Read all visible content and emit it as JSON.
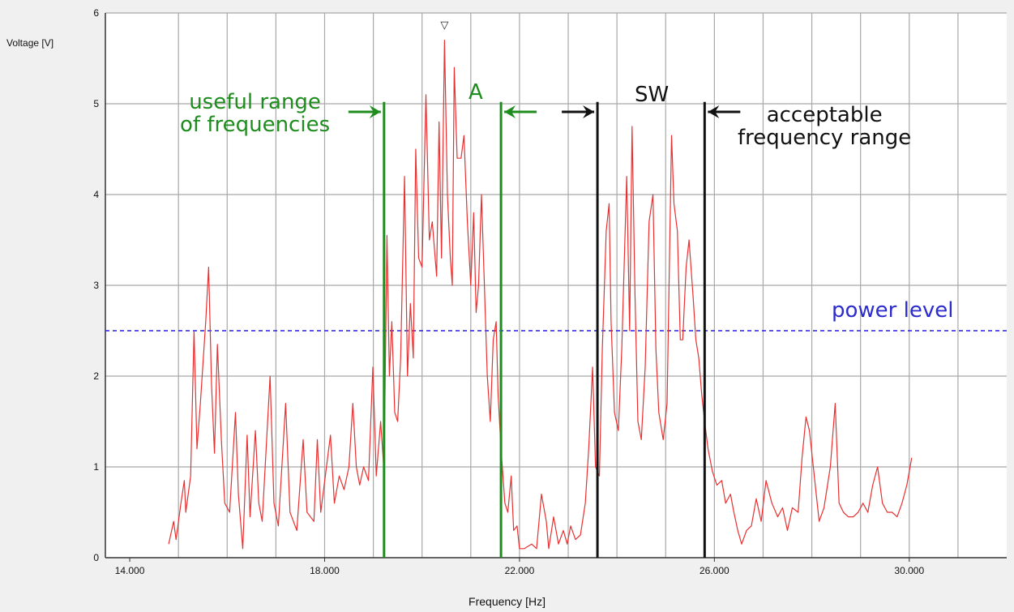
{
  "chart_data": {
    "type": "line",
    "title": "",
    "xlabel": "Frequency [Hz]",
    "ylabel": "Voltage [V]",
    "xlim": [
      13500,
      32000
    ],
    "ylim": [
      0,
      6
    ],
    "x_ticks": [
      14000,
      18000,
      22000,
      26000,
      30000
    ],
    "x_tick_labels": [
      "14.000",
      "18.000",
      "22.000",
      "26.000",
      "30.000"
    ],
    "x_minor_grid_step": 1000,
    "y_ticks": [
      0,
      1,
      2,
      3,
      4,
      5,
      6
    ],
    "y_tick_labels": [
      "0",
      "1",
      "2",
      "3",
      "4",
      "5",
      "6"
    ],
    "grid": true,
    "series": [
      {
        "color": "#e83030",
        "points": [
          [
            14800,
            0.15
          ],
          [
            14900,
            0.4
          ],
          [
            14950,
            0.2
          ],
          [
            15050,
            0.6
          ],
          [
            15120,
            0.85
          ],
          [
            15150,
            0.5
          ],
          [
            15250,
            0.9
          ],
          [
            15320,
            2.5
          ],
          [
            15380,
            1.2
          ],
          [
            15450,
            1.7
          ],
          [
            15560,
            2.6
          ],
          [
            15620,
            3.2
          ],
          [
            15680,
            1.9
          ],
          [
            15740,
            1.15
          ],
          [
            15800,
            2.35
          ],
          [
            15880,
            1.3
          ],
          [
            15950,
            0.6
          ],
          [
            16050,
            0.5
          ],
          [
            16170,
            1.6
          ],
          [
            16230,
            0.7
          ],
          [
            16320,
            0.1
          ],
          [
            16410,
            1.35
          ],
          [
            16470,
            0.45
          ],
          [
            16580,
            1.4
          ],
          [
            16650,
            0.6
          ],
          [
            16720,
            0.4
          ],
          [
            16880,
            2.0
          ],
          [
            16960,
            0.6
          ],
          [
            17050,
            0.35
          ],
          [
            17200,
            1.7
          ],
          [
            17290,
            0.5
          ],
          [
            17430,
            0.3
          ],
          [
            17560,
            1.3
          ],
          [
            17640,
            0.5
          ],
          [
            17780,
            0.4
          ],
          [
            17850,
            1.3
          ],
          [
            17920,
            0.5
          ],
          [
            18120,
            1.35
          ],
          [
            18200,
            0.6
          ],
          [
            18300,
            0.9
          ],
          [
            18400,
            0.75
          ],
          [
            18500,
            1.0
          ],
          [
            18580,
            1.7
          ],
          [
            18650,
            1.0
          ],
          [
            18720,
            0.8
          ],
          [
            18800,
            1.0
          ],
          [
            18900,
            0.85
          ],
          [
            18990,
            2.1
          ],
          [
            19060,
            0.9
          ],
          [
            19150,
            1.5
          ],
          [
            19220,
            0.95
          ],
          [
            19280,
            3.55
          ],
          [
            19330,
            2.0
          ],
          [
            19380,
            2.6
          ],
          [
            19440,
            1.6
          ],
          [
            19500,
            1.5
          ],
          [
            19560,
            2.2
          ],
          [
            19640,
            4.2
          ],
          [
            19700,
            2.0
          ],
          [
            19760,
            2.8
          ],
          [
            19820,
            2.2
          ],
          [
            19870,
            4.5
          ],
          [
            19930,
            3.3
          ],
          [
            20000,
            3.2
          ],
          [
            20080,
            5.1
          ],
          [
            20150,
            3.5
          ],
          [
            20210,
            3.7
          ],
          [
            20300,
            3.1
          ],
          [
            20350,
            4.8
          ],
          [
            20400,
            3.3
          ],
          [
            20460,
            5.7
          ],
          [
            20520,
            4.0
          ],
          [
            20580,
            3.3
          ],
          [
            20620,
            3.0
          ],
          [
            20660,
            5.4
          ],
          [
            20720,
            4.4
          ],
          [
            20800,
            4.4
          ],
          [
            20860,
            4.65
          ],
          [
            20930,
            3.7
          ],
          [
            21000,
            3.0
          ],
          [
            21060,
            3.8
          ],
          [
            21110,
            2.7
          ],
          [
            21160,
            3.0
          ],
          [
            21220,
            4.0
          ],
          [
            21280,
            3.0
          ],
          [
            21340,
            2.0
          ],
          [
            21400,
            1.5
          ],
          [
            21460,
            2.4
          ],
          [
            21520,
            2.6
          ],
          [
            21560,
            1.8
          ],
          [
            21620,
            1.2
          ],
          [
            21700,
            0.6
          ],
          [
            21760,
            0.5
          ],
          [
            21830,
            0.9
          ],
          [
            21880,
            0.3
          ],
          [
            21950,
            0.35
          ],
          [
            22000,
            0.1
          ],
          [
            22100,
            0.1
          ],
          [
            22250,
            0.15
          ],
          [
            22350,
            0.1
          ],
          [
            22450,
            0.7
          ],
          [
            22550,
            0.4
          ],
          [
            22600,
            0.1
          ],
          [
            22700,
            0.45
          ],
          [
            22800,
            0.15
          ],
          [
            22900,
            0.3
          ],
          [
            22980,
            0.15
          ],
          [
            23050,
            0.35
          ],
          [
            23150,
            0.2
          ],
          [
            23250,
            0.25
          ],
          [
            23350,
            0.6
          ],
          [
            23420,
            1.2
          ],
          [
            23500,
            2.1
          ],
          [
            23560,
            1.0
          ],
          [
            23640,
            0.9
          ],
          [
            23700,
            2.3
          ],
          [
            23780,
            3.6
          ],
          [
            23840,
            3.9
          ],
          [
            23880,
            2.6
          ],
          [
            23950,
            1.6
          ],
          [
            24030,
            1.4
          ],
          [
            24100,
            2.3
          ],
          [
            24200,
            4.2
          ],
          [
            24260,
            2.5
          ],
          [
            24310,
            4.75
          ],
          [
            24370,
            2.9
          ],
          [
            24430,
            1.5
          ],
          [
            24500,
            1.3
          ],
          [
            24580,
            2.1
          ],
          [
            24660,
            3.7
          ],
          [
            24740,
            4.0
          ],
          [
            24800,
            2.3
          ],
          [
            24860,
            1.6
          ],
          [
            24950,
            1.3
          ],
          [
            25030,
            1.7
          ],
          [
            25120,
            4.65
          ],
          [
            25170,
            3.9
          ],
          [
            25240,
            3.6
          ],
          [
            25300,
            2.4
          ],
          [
            25350,
            2.4
          ],
          [
            25420,
            3.2
          ],
          [
            25480,
            3.5
          ],
          [
            25560,
            2.9
          ],
          [
            25620,
            2.4
          ],
          [
            25680,
            2.2
          ],
          [
            25740,
            1.8
          ],
          [
            25800,
            1.5
          ],
          [
            25870,
            1.2
          ],
          [
            25960,
            0.95
          ],
          [
            26050,
            0.8
          ],
          [
            26150,
            0.85
          ],
          [
            26230,
            0.6
          ],
          [
            26330,
            0.7
          ],
          [
            26400,
            0.5
          ],
          [
            26480,
            0.3
          ],
          [
            26560,
            0.15
          ],
          [
            26660,
            0.3
          ],
          [
            26760,
            0.35
          ],
          [
            26860,
            0.65
          ],
          [
            26960,
            0.4
          ],
          [
            27060,
            0.85
          ],
          [
            27180,
            0.6
          ],
          [
            27300,
            0.45
          ],
          [
            27400,
            0.55
          ],
          [
            27500,
            0.3
          ],
          [
            27600,
            0.55
          ],
          [
            27720,
            0.5
          ],
          [
            27800,
            1.1
          ],
          [
            27880,
            1.55
          ],
          [
            27950,
            1.4
          ],
          [
            28050,
            0.9
          ],
          [
            28150,
            0.4
          ],
          [
            28250,
            0.55
          ],
          [
            28380,
            1.0
          ],
          [
            28480,
            1.7
          ],
          [
            28560,
            0.6
          ],
          [
            28650,
            0.5
          ],
          [
            28750,
            0.45
          ],
          [
            28850,
            0.45
          ],
          [
            28950,
            0.5
          ],
          [
            29050,
            0.6
          ],
          [
            29150,
            0.5
          ],
          [
            29250,
            0.8
          ],
          [
            29350,
            1.0
          ],
          [
            29450,
            0.6
          ],
          [
            29550,
            0.5
          ],
          [
            29650,
            0.5
          ],
          [
            29750,
            0.45
          ],
          [
            29850,
            0.6
          ],
          [
            29950,
            0.8
          ],
          [
            30050,
            1.1
          ]
        ]
      }
    ],
    "reference_line": {
      "y": 2.5,
      "color": "#2020dd",
      "style": "dashed",
      "label": "power level"
    },
    "vertical_markers": [
      {
        "x": 19220,
        "color": "#1e8c1e",
        "y_from": 0,
        "y_to": 5.02
      },
      {
        "x": 21620,
        "color": "#1e8c1e",
        "y_from": 0,
        "y_to": 5.02
      },
      {
        "x": 23600,
        "color": "#111111",
        "y_from": 0,
        "y_to": 5.02
      },
      {
        "x": 25800,
        "color": "#111111",
        "y_from": 0,
        "y_to": 5.02
      }
    ],
    "peak_marker": {
      "x": 20460,
      "y": 5.85,
      "symbol": "▽"
    },
    "annotations": {
      "green_left": "useful range\nof frequencies",
      "green_top": "A",
      "black_top": "SW",
      "black_right": "acceptable\nfrequency range",
      "blue": "power level"
    }
  }
}
